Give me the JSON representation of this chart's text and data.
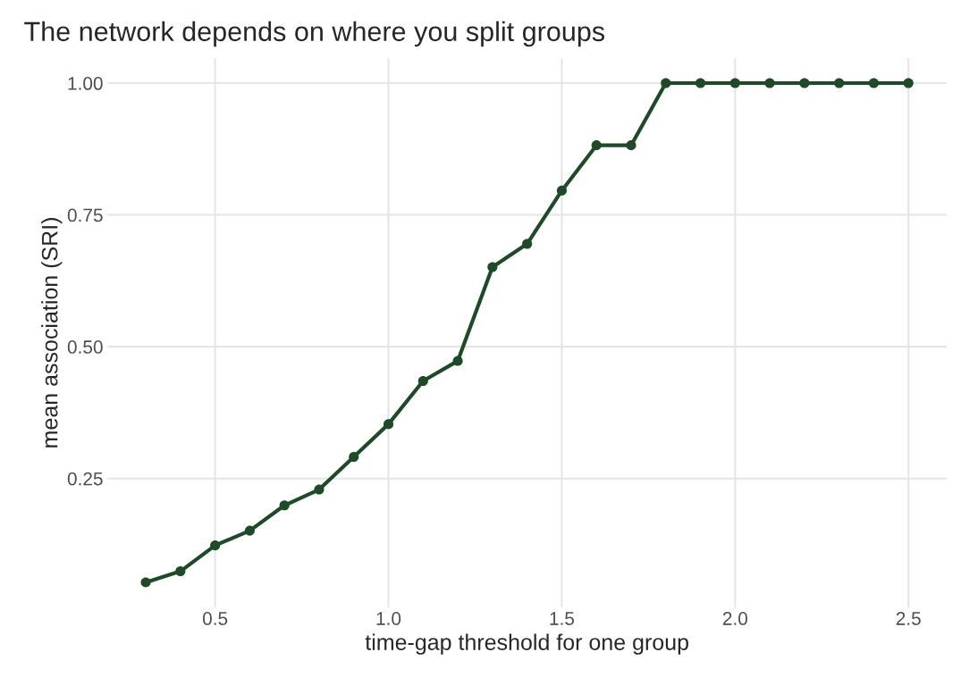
{
  "chart_data": {
    "type": "line",
    "title": "The network depends on where you split groups",
    "xlabel": "time-gap threshold for one group",
    "ylabel": "mean association (SRI)",
    "x": [
      0.3,
      0.4,
      0.5,
      0.6,
      0.7,
      0.8,
      0.9,
      1.0,
      1.1,
      1.2,
      1.3,
      1.4,
      1.5,
      1.6,
      1.7,
      1.8,
      1.9,
      2.0,
      2.1,
      2.2,
      2.3,
      2.4,
      2.5
    ],
    "series": [
      {
        "color": "#1f4a28",
        "values": [
          0.053,
          0.074,
          0.123,
          0.151,
          0.199,
          0.229,
          0.291,
          0.353,
          0.435,
          0.473,
          0.651,
          0.695,
          0.796,
          0.882,
          0.882,
          1.0,
          1.0,
          1.0,
          1.0,
          1.0,
          1.0,
          1.0,
          1.0
        ]
      }
    ],
    "xlim": [
      0.19,
      2.61
    ],
    "ylim": [
      0.006,
      1.047
    ],
    "xticks": [
      {
        "value": 0.5,
        "label": "0.5"
      },
      {
        "value": 1.0,
        "label": "1.0"
      },
      {
        "value": 1.5,
        "label": "1.5"
      },
      {
        "value": 2.0,
        "label": "2.0"
      },
      {
        "value": 2.5,
        "label": "2.5"
      }
    ],
    "yticks": [
      {
        "value": 0.25,
        "label": "0.25"
      },
      {
        "value": 0.5,
        "label": "0.50"
      },
      {
        "value": 0.75,
        "label": "0.75"
      },
      {
        "value": 1.0,
        "label": "1.00"
      }
    ],
    "grid": true,
    "marker": "circle",
    "line_style": "solid",
    "legend": false
  }
}
